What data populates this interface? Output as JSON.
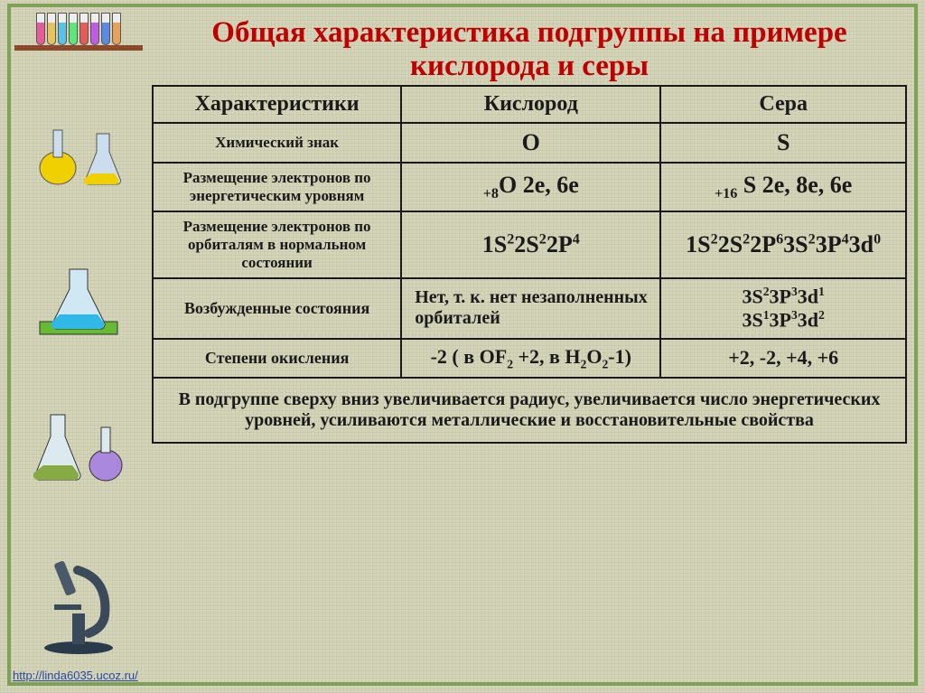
{
  "title": "Общая характеристика подгруппы на примере кислорода и серы",
  "headers": {
    "c0": "Характеристики",
    "c1": "Кислород",
    "c2": "Сера"
  },
  "rows": {
    "r1": {
      "label": "Химический знак",
      "oxygen": "O",
      "sulfur": "S"
    },
    "r2": {
      "label": "Размещение электронов по энергетическим уровням"
    },
    "r3": {
      "label": "Размещение электронов по орбиталям в нормальном состоянии"
    },
    "r4": {
      "label": "Возбужденные состояния",
      "oxygen": "Нет, т. к. нет незаполненных орбиталей"
    },
    "r5": {
      "label": "Степени окисления",
      "sulfur": "+2, -2, +4, +6"
    }
  },
  "formulas": {
    "o_levels_prefix": "+8",
    "o_levels_main": "O 2e, 6e",
    "s_levels_prefix": "+16",
    "s_levels_main": " S 2e, 8e, 6e",
    "o_orbit": [
      [
        "1S",
        "2"
      ],
      [
        "2S",
        "2"
      ],
      [
        "2P",
        "4"
      ]
    ],
    "s_orbit": [
      [
        "1S",
        "2"
      ],
      [
        "2S",
        "2"
      ],
      [
        "2P",
        "6"
      ],
      [
        "3S",
        "2"
      ],
      [
        "3P",
        "4"
      ],
      [
        "3d",
        "0"
      ]
    ],
    "s_exc1": [
      [
        "3S",
        "2"
      ],
      [
        "3P",
        "3"
      ],
      [
        "3d",
        "1"
      ]
    ],
    "s_exc2": [
      [
        "3S",
        "1"
      ],
      [
        "3P",
        "3"
      ],
      [
        "3d",
        "2"
      ]
    ],
    "o_oxstate_pre": "-2  ( в OF",
    "o_oxstate_mid": " +2, в H",
    "o_oxstate_tail": "-1)"
  },
  "footer": "В подгруппе сверху вниз увеличивается радиус, увеличивается число энергетических уровней, усиливаются металлические и восстановительные свойства",
  "link": "http://linda6035.ucoz.ru/",
  "tube_colors": [
    "#e85a9a",
    "#e8c25a",
    "#5ac2e8",
    "#5ae87a",
    "#e85a5a",
    "#c25ae8",
    "#5a8ae8",
    "#e8a05a"
  ],
  "flask_colors": [
    "#f0d000",
    "#f0d000",
    "#30b8e8"
  ]
}
